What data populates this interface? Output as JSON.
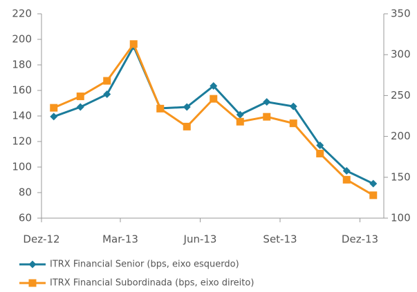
{
  "chart_data": {
    "type": "line",
    "categories": [
      "Dez-12",
      null,
      null,
      "Mar-13",
      null,
      null,
      "Jun-13",
      null,
      null,
      "Set-13",
      null,
      null,
      "Dez-13"
    ],
    "ylim": [
      60,
      220
    ],
    "yticks": [
      60,
      80,
      100,
      120,
      140,
      160,
      180,
      200,
      220
    ],
    "y2lim": [
      100,
      350
    ],
    "y2ticks": [
      100,
      150,
      200,
      250,
      300,
      350
    ],
    "series": [
      {
        "name": "ITRX Financial Senior (bps, eixo esquerdo)",
        "color": "#1b7c9b",
        "marker": "diamond",
        "values": [
          139.5,
          147,
          157,
          194.5,
          146,
          147,
          163.5,
          141,
          151,
          147.5,
          117,
          97,
          87
        ]
      },
      {
        "name": "ITRX Financial Subordinada (bps, eixo direito)",
        "color": "#f7941d",
        "marker": "square",
        "axis": "y2",
        "values": [
          235,
          249,
          268,
          313,
          234,
          212,
          246,
          218,
          224,
          216,
          179,
          147,
          128
        ]
      }
    ]
  }
}
